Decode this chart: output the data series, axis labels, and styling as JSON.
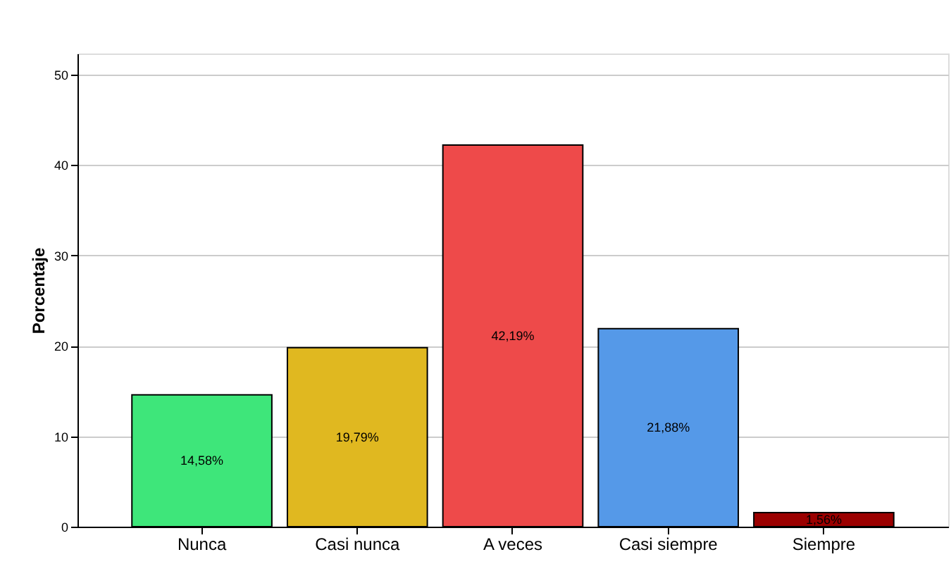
{
  "chart_data": {
    "type": "bar",
    "ylabel": "Porcentaje",
    "categories": [
      "Nunca",
      "Casi nunca",
      "A veces",
      "Casi siempre",
      "Siempre"
    ],
    "values": [
      14.58,
      19.79,
      42.19,
      21.88,
      1.56
    ],
    "colors": [
      "#3ee67a",
      "#e0b820",
      "#ee4a4a",
      "#5599e8",
      "#9b0000"
    ],
    "value_labels": [
      "14,58%",
      "19,79%",
      "42,19%",
      "21,88%",
      "1,56%"
    ],
    "ylim": [
      0,
      52.3
    ],
    "yticks": [
      0,
      10,
      20,
      30,
      40,
      50
    ],
    "grid": "y"
  }
}
